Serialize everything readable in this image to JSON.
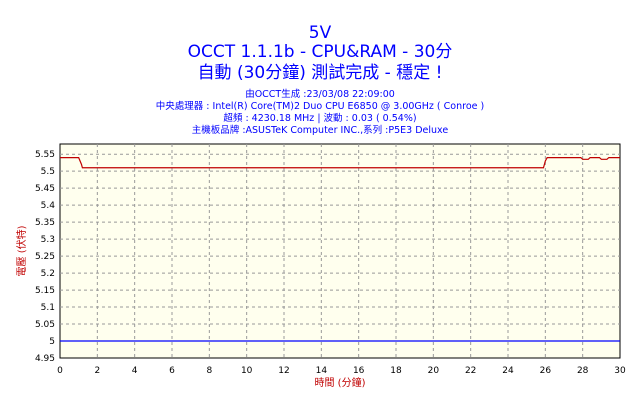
{
  "chart_data": {
    "type": "line",
    "title": "5V",
    "subtitle": "OCCT 1.1.1b - CPU&RAM - 30分",
    "status": "自動 (30分鐘) 測試完成 - 穩定 !",
    "info_lines": [
      "由OCCT生成 :23/03/08 22:09:00",
      "中央處理器 : Intel(R) Core(TM)2 Duo CPU E6850 @ 3.00GHz ( Conroe )",
      "超頻 : 4230.18 MHz | 波動 : 0.03 ( 0.54%)",
      "主機板品牌 :ASUSTeK Computer INC.,系列 :P5E3 Deluxe"
    ],
    "xlabel": "時間 (分鐘)",
    "ylabel": "電壓 (伏特)",
    "xlim": [
      0,
      30
    ],
    "ylim": [
      4.95,
      5.58
    ],
    "xticks": [
      "0",
      "2",
      "4",
      "6",
      "8",
      "10",
      "12",
      "14",
      "16",
      "18",
      "20",
      "22",
      "24",
      "26",
      "28",
      "30"
    ],
    "yticks": [
      "5.55",
      "5.5",
      "5.45",
      "5.4",
      "5.35",
      "5.3",
      "5.25",
      "5.2",
      "5.15",
      "5.1",
      "5.05",
      "5",
      "4.95"
    ],
    "grid": true,
    "series": [
      {
        "color": "#c00000",
        "points": [
          [
            0,
            5.54
          ],
          [
            1.0,
            5.54
          ],
          [
            1.15,
            5.52
          ],
          [
            1.2,
            5.51
          ],
          [
            25.9,
            5.51
          ],
          [
            26.0,
            5.53
          ],
          [
            26.1,
            5.54
          ],
          [
            27.9,
            5.54
          ],
          [
            28.0,
            5.535
          ],
          [
            28.3,
            5.535
          ],
          [
            28.4,
            5.54
          ],
          [
            28.9,
            5.54
          ],
          [
            29.0,
            5.535
          ],
          [
            29.3,
            5.535
          ],
          [
            29.4,
            5.54
          ],
          [
            30,
            5.54
          ]
        ]
      },
      {
        "color": "#0000ff",
        "points": [
          [
            0,
            5.0
          ],
          [
            30,
            5.0
          ]
        ]
      }
    ]
  }
}
